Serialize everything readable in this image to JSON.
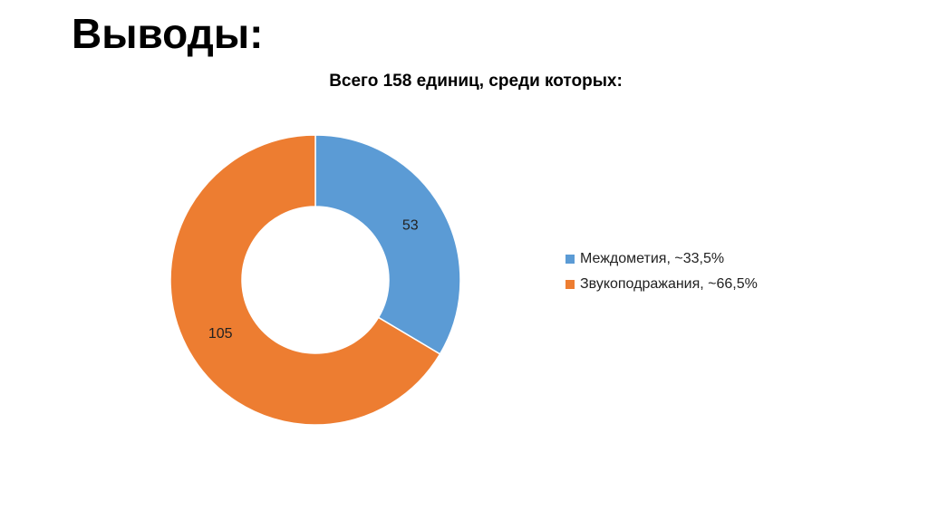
{
  "slide": {
    "title": "Выводы:"
  },
  "chart_data": {
    "type": "pie",
    "variant": "doughnut",
    "title": "Всего 158 единиц, среди которых:",
    "categories": [
      "Междометия, ~33,5%",
      "Звукоподражания, ~66,5%"
    ],
    "values": [
      53,
      105
    ],
    "data_labels": [
      "53",
      "105"
    ],
    "colors": [
      "#5B9BD5",
      "#ED7D31"
    ],
    "legend": "right"
  }
}
